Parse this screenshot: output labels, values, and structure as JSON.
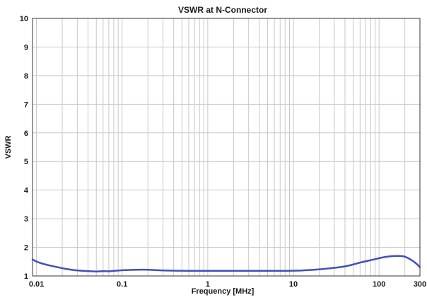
{
  "chart_data": {
    "type": "line",
    "title": "VSWR at N-Connector",
    "xlabel": "Frequency [MHz]",
    "ylabel": "VSWR",
    "x_scale": "log",
    "xlim": [
      0.009,
      300
    ],
    "ylim": [
      1,
      10
    ],
    "x_ticks": [
      0.01,
      0.1,
      1,
      10,
      100,
      300
    ],
    "x_tick_labels": [
      "0.01",
      "0.1",
      "1",
      "10",
      "100",
      "300"
    ],
    "y_ticks": [
      1,
      2,
      3,
      4,
      5,
      6,
      7,
      8,
      9,
      10
    ],
    "y_tick_labels": [
      "1",
      "2",
      "3",
      "4",
      "5",
      "6",
      "7",
      "8",
      "9",
      "10"
    ],
    "grid": true,
    "line_color": "#3f51b5",
    "series": [
      {
        "x": [
          0.009,
          0.01,
          0.012,
          0.015,
          0.02,
          0.025,
          0.03,
          0.04,
          0.05,
          0.06,
          0.07,
          0.08,
          0.1,
          0.15,
          0.2,
          0.3,
          0.5,
          1,
          2,
          5,
          10,
          15,
          20,
          30,
          40,
          50,
          60,
          80,
          100,
          120,
          150,
          180,
          200,
          220,
          250,
          280,
          300
        ],
        "y": [
          1.58,
          1.5,
          1.42,
          1.35,
          1.27,
          1.22,
          1.19,
          1.17,
          1.15,
          1.17,
          1.16,
          1.18,
          1.2,
          1.22,
          1.22,
          1.19,
          1.18,
          1.18,
          1.18,
          1.18,
          1.18,
          1.2,
          1.23,
          1.28,
          1.33,
          1.4,
          1.47,
          1.55,
          1.62,
          1.67,
          1.7,
          1.7,
          1.68,
          1.62,
          1.52,
          1.4,
          1.3
        ]
      }
    ]
  }
}
